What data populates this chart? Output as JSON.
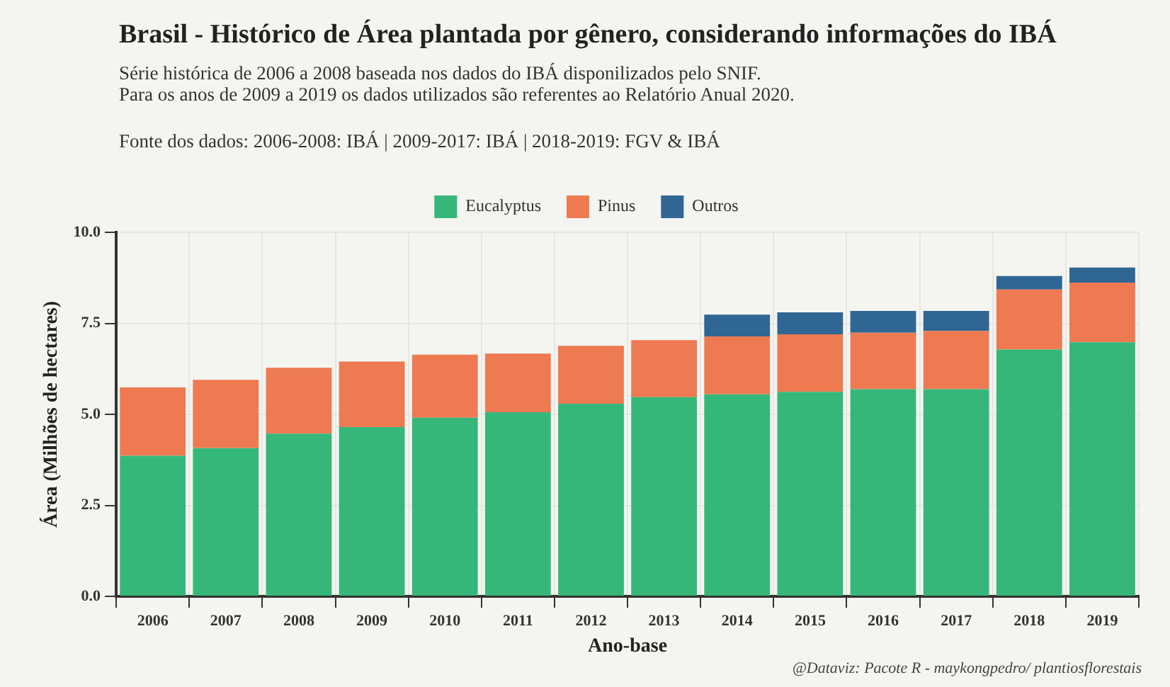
{
  "chart_data": {
    "type": "bar",
    "title": "Brasil - Histórico de Área plantada por gênero, considerando informações do IBÁ",
    "subtitle": "Série histórica de 2006 a 2008 baseada nos dados do IBÁ disponilizados  pelo SNIF.\nPara os anos de 2009 a 2019 os dados utilizados são referentes ao Relatório Anual 2020.",
    "annotations": [
      "Fonte dos dados:  2006-2008: IBÁ | 2009-2017: IBÁ | 2018-2019: FGV & IBÁ",
      "@Dataviz:  Pacote R - maykongpedro/ plantiosflorestais"
    ],
    "xlabel": "Ano-base",
    "ylabel": "Área (Milhões de hectares)",
    "categories": [
      "2006",
      "2007",
      "2008",
      "2009",
      "2010",
      "2011",
      "2012",
      "2013",
      "2014",
      "2015",
      "2016",
      "2017",
      "2018",
      "2019"
    ],
    "series": [
      {
        "name": "Eucalyptus",
        "color": "#36b77a",
        "values": [
          3.86,
          4.07,
          4.47,
          4.65,
          4.91,
          5.06,
          5.29,
          5.47,
          5.55,
          5.62,
          5.69,
          5.69,
          6.78,
          6.98
        ]
      },
      {
        "name": "Pinus",
        "color": "#ee7a52",
        "values": [
          1.88,
          1.88,
          1.81,
          1.8,
          1.73,
          1.61,
          1.59,
          1.57,
          1.59,
          1.58,
          1.55,
          1.6,
          1.65,
          1.64
        ]
      },
      {
        "name": "Outros",
        "color": "#2f6693",
        "values": [
          null,
          null,
          null,
          null,
          null,
          null,
          null,
          null,
          0.6,
          0.6,
          0.6,
          0.55,
          0.37,
          0.41
        ]
      }
    ],
    "stacked": true,
    "ylim": [
      0,
      10
    ],
    "yticks": [
      {
        "value": 0,
        "label": "0.0"
      },
      {
        "value": 2.5,
        "label": "2.5"
      },
      {
        "value": 5,
        "label": "5.0"
      },
      {
        "value": 7.5,
        "label": "7.5"
      },
      {
        "value": 10,
        "label": "10.0"
      }
    ],
    "grid": true,
    "legend": "top"
  }
}
